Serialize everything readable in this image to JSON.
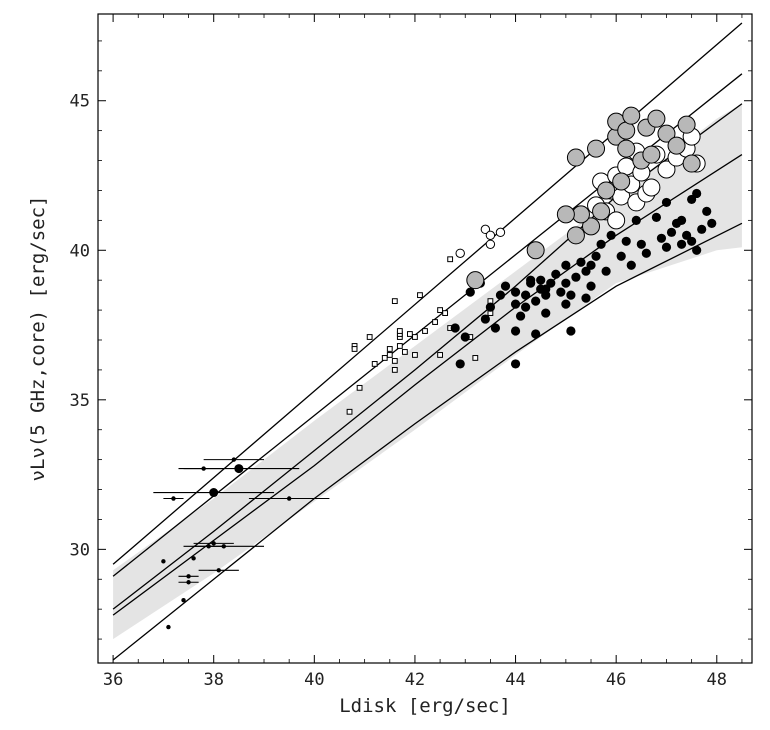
{
  "chart_data": {
    "type": "scatter",
    "xlabel": "Ldisk [erg/sec]",
    "ylabel": "νLν(5 GHz,core) [erg/sec]",
    "xlim": [
      35.7,
      48.7
    ],
    "ylim": [
      26.2,
      47.9
    ],
    "x_ticks": [
      36,
      38,
      40,
      42,
      44,
      46,
      48
    ],
    "y_ticks": [
      30,
      35,
      40,
      45
    ],
    "grid": false,
    "shaded_band": {
      "x": [
        36.0,
        38.0,
        40.0,
        42.0,
        44.0,
        46.0,
        48.0,
        48.5
      ],
      "lower": [
        27.0,
        29.2,
        31.6,
        34.0,
        36.5,
        38.9,
        40.0,
        40.1
      ],
      "upper": [
        29.3,
        31.7,
        34.3,
        36.8,
        39.3,
        41.8,
        44.4,
        44.9
      ]
    },
    "lines": [
      {
        "x": [
          36.0,
          48.5
        ],
        "y": [
          29.5,
          47.6
        ]
      },
      {
        "x": [
          36.0,
          48.5
        ],
        "y": [
          29.1,
          45.9
        ]
      },
      {
        "x": [
          36.0,
          38.0,
          40.0,
          42.0,
          44.0,
          46.0,
          48.5
        ],
        "y": [
          28.0,
          30.6,
          33.3,
          36.0,
          38.8,
          41.8,
          44.9
        ]
      },
      {
        "x": [
          36.0,
          38.0,
          40.0,
          42.0,
          44.0,
          46.0,
          48.5
        ],
        "y": [
          27.8,
          30.3,
          32.8,
          35.5,
          38.1,
          40.5,
          43.2
        ]
      },
      {
        "x": [
          36.0,
          38.0,
          40.0,
          42.0,
          44.0,
          46.0,
          48.5
        ],
        "y": [
          26.3,
          29.0,
          31.7,
          34.2,
          36.6,
          38.8,
          40.9
        ]
      }
    ],
    "series": [
      {
        "marker": "small-filled-circle-errorbar",
        "color": "#000000",
        "points": [
          [
            37.0,
            29.6
          ],
          [
            37.1,
            27.4
          ],
          [
            37.2,
            31.7
          ],
          [
            37.4,
            28.3
          ],
          [
            37.5,
            29.1
          ],
          [
            37.5,
            28.9
          ],
          [
            37.6,
            29.7
          ],
          [
            37.8,
            32.7
          ],
          [
            37.9,
            30.1
          ],
          [
            38.0,
            30.2
          ],
          [
            38.1,
            29.3
          ],
          [
            38.2,
            30.1
          ],
          [
            38.4,
            33.0
          ],
          [
            39.5,
            31.7
          ]
        ],
        "xerr": [
          0,
          0,
          0.2,
          0,
          0.2,
          0.2,
          0,
          0.4,
          0.3,
          0.4,
          0.4,
          0.8,
          0.6,
          0.8
        ]
      },
      {
        "marker": "filled-circle-errorbar",
        "color": "#000000",
        "points": [
          [
            38.0,
            31.9
          ],
          [
            38.5,
            32.7
          ]
        ],
        "xerr": [
          1.2,
          1.2
        ]
      },
      {
        "marker": "open-square",
        "color": "#000000",
        "points": [
          [
            40.7,
            34.6
          ],
          [
            40.8,
            36.8
          ],
          [
            40.8,
            36.7
          ],
          [
            40.9,
            35.4
          ],
          [
            41.1,
            37.1
          ],
          [
            41.2,
            36.2
          ],
          [
            41.4,
            36.4
          ],
          [
            41.5,
            36.5
          ],
          [
            41.5,
            36.7
          ],
          [
            41.6,
            36.3
          ],
          [
            41.6,
            36.0
          ],
          [
            41.7,
            37.1
          ],
          [
            41.7,
            37.2
          ],
          [
            41.6,
            38.3
          ],
          [
            41.7,
            37.3
          ],
          [
            41.7,
            36.8
          ],
          [
            41.9,
            37.2
          ],
          [
            41.8,
            36.6
          ],
          [
            42.0,
            37.1
          ],
          [
            42.0,
            36.5
          ],
          [
            42.1,
            38.5
          ],
          [
            42.2,
            37.3
          ],
          [
            42.4,
            37.6
          ],
          [
            42.5,
            38.0
          ],
          [
            42.5,
            36.5
          ],
          [
            42.6,
            37.9
          ],
          [
            42.7,
            37.4
          ],
          [
            42.7,
            39.7
          ],
          [
            43.1,
            37.1
          ],
          [
            43.2,
            36.4
          ],
          [
            43.5,
            38.3
          ],
          [
            43.5,
            37.9
          ]
        ]
      },
      {
        "marker": "open-circle",
        "color": "#000000",
        "points": [
          [
            42.9,
            39.9
          ],
          [
            43.4,
            40.7
          ],
          [
            43.5,
            40.5
          ],
          [
            43.5,
            40.2
          ],
          [
            43.7,
            40.6
          ]
        ]
      },
      {
        "marker": "filled-circle",
        "color": "#000000",
        "points": [
          [
            42.8,
            37.4
          ],
          [
            42.9,
            36.2
          ],
          [
            43.0,
            37.1
          ],
          [
            43.1,
            38.6
          ],
          [
            43.3,
            38.9
          ],
          [
            43.4,
            37.7
          ],
          [
            43.5,
            38.1
          ],
          [
            43.6,
            37.4
          ],
          [
            43.7,
            38.5
          ],
          [
            43.8,
            38.8
          ],
          [
            44.0,
            37.3
          ],
          [
            44.0,
            36.2
          ],
          [
            44.0,
            38.2
          ],
          [
            44.1,
            37.8
          ],
          [
            44.2,
            38.5
          ],
          [
            44.3,
            38.9
          ],
          [
            44.3,
            39.0
          ],
          [
            44.4,
            37.2
          ],
          [
            44.4,
            38.3
          ],
          [
            44.5,
            38.7
          ],
          [
            44.5,
            39.0
          ],
          [
            44.6,
            37.9
          ],
          [
            44.6,
            38.5
          ],
          [
            44.7,
            38.9
          ],
          [
            44.8,
            39.2
          ],
          [
            44.9,
            38.6
          ],
          [
            45.0,
            38.9
          ],
          [
            45.0,
            39.5
          ],
          [
            45.1,
            38.5
          ],
          [
            45.1,
            37.3
          ],
          [
            45.2,
            39.1
          ],
          [
            45.3,
            39.6
          ],
          [
            45.4,
            38.4
          ],
          [
            45.5,
            39.5
          ],
          [
            45.5,
            38.8
          ],
          [
            45.6,
            39.8
          ],
          [
            45.7,
            40.2
          ],
          [
            45.8,
            39.3
          ],
          [
            45.9,
            40.5
          ],
          [
            46.1,
            39.8
          ],
          [
            46.2,
            40.3
          ],
          [
            46.3,
            39.5
          ],
          [
            46.4,
            41.0
          ],
          [
            46.5,
            40.2
          ],
          [
            46.6,
            39.9
          ],
          [
            46.8,
            41.1
          ],
          [
            46.9,
            40.4
          ],
          [
            47.0,
            40.1
          ],
          [
            47.0,
            41.6
          ],
          [
            47.1,
            40.6
          ],
          [
            47.2,
            40.9
          ],
          [
            47.3,
            40.2
          ],
          [
            47.3,
            41.0
          ],
          [
            47.4,
            40.5
          ],
          [
            47.5,
            40.3
          ],
          [
            47.5,
            41.7
          ],
          [
            47.6,
            40.0
          ],
          [
            47.6,
            41.9
          ],
          [
            47.7,
            40.7
          ],
          [
            47.8,
            41.3
          ],
          [
            47.9,
            40.9
          ],
          [
            44.0,
            38.6
          ],
          [
            44.2,
            38.1
          ],
          [
            44.6,
            38.7
          ],
          [
            45.0,
            38.2
          ],
          [
            45.4,
            39.3
          ]
        ]
      },
      {
        "marker": "large-open-circle",
        "color": "#000000",
        "points": [
          [
            45.6,
            41.5
          ],
          [
            45.7,
            42.3
          ],
          [
            45.8,
            41.3
          ],
          [
            45.9,
            42.0
          ],
          [
            46.0,
            42.5
          ],
          [
            46.0,
            41.0
          ],
          [
            46.1,
            41.8
          ],
          [
            46.2,
            42.8
          ],
          [
            46.3,
            42.2
          ],
          [
            46.4,
            43.3
          ],
          [
            46.4,
            41.6
          ],
          [
            46.5,
            42.6
          ],
          [
            46.6,
            41.9
          ],
          [
            46.7,
            42.1
          ],
          [
            46.8,
            43.2
          ],
          [
            47.0,
            42.7
          ],
          [
            47.2,
            43.1
          ],
          [
            47.4,
            43.4
          ],
          [
            47.5,
            43.8
          ],
          [
            47.6,
            42.9
          ]
        ]
      },
      {
        "marker": "large-gray-circle",
        "color": "#b8b8b8",
        "points": [
          [
            45.5,
            40.8
          ],
          [
            45.7,
            41.3
          ],
          [
            45.8,
            42.0
          ],
          [
            46.0,
            43.8
          ],
          [
            46.0,
            44.3
          ],
          [
            46.1,
            42.3
          ],
          [
            46.2,
            44.0
          ],
          [
            46.2,
            43.4
          ],
          [
            46.3,
            44.5
          ],
          [
            46.5,
            43.0
          ],
          [
            46.6,
            44.1
          ],
          [
            46.7,
            43.2
          ],
          [
            46.8,
            44.4
          ],
          [
            47.0,
            43.9
          ],
          [
            47.2,
            43.5
          ],
          [
            47.4,
            44.2
          ],
          [
            47.5,
            42.9
          ],
          [
            45.6,
            43.4
          ],
          [
            45.3,
            41.2
          ],
          [
            45.0,
            41.2
          ],
          [
            44.4,
            40.0
          ],
          [
            45.2,
            40.5
          ],
          [
            43.2,
            39.0
          ],
          [
            45.2,
            43.1
          ]
        ]
      }
    ]
  }
}
